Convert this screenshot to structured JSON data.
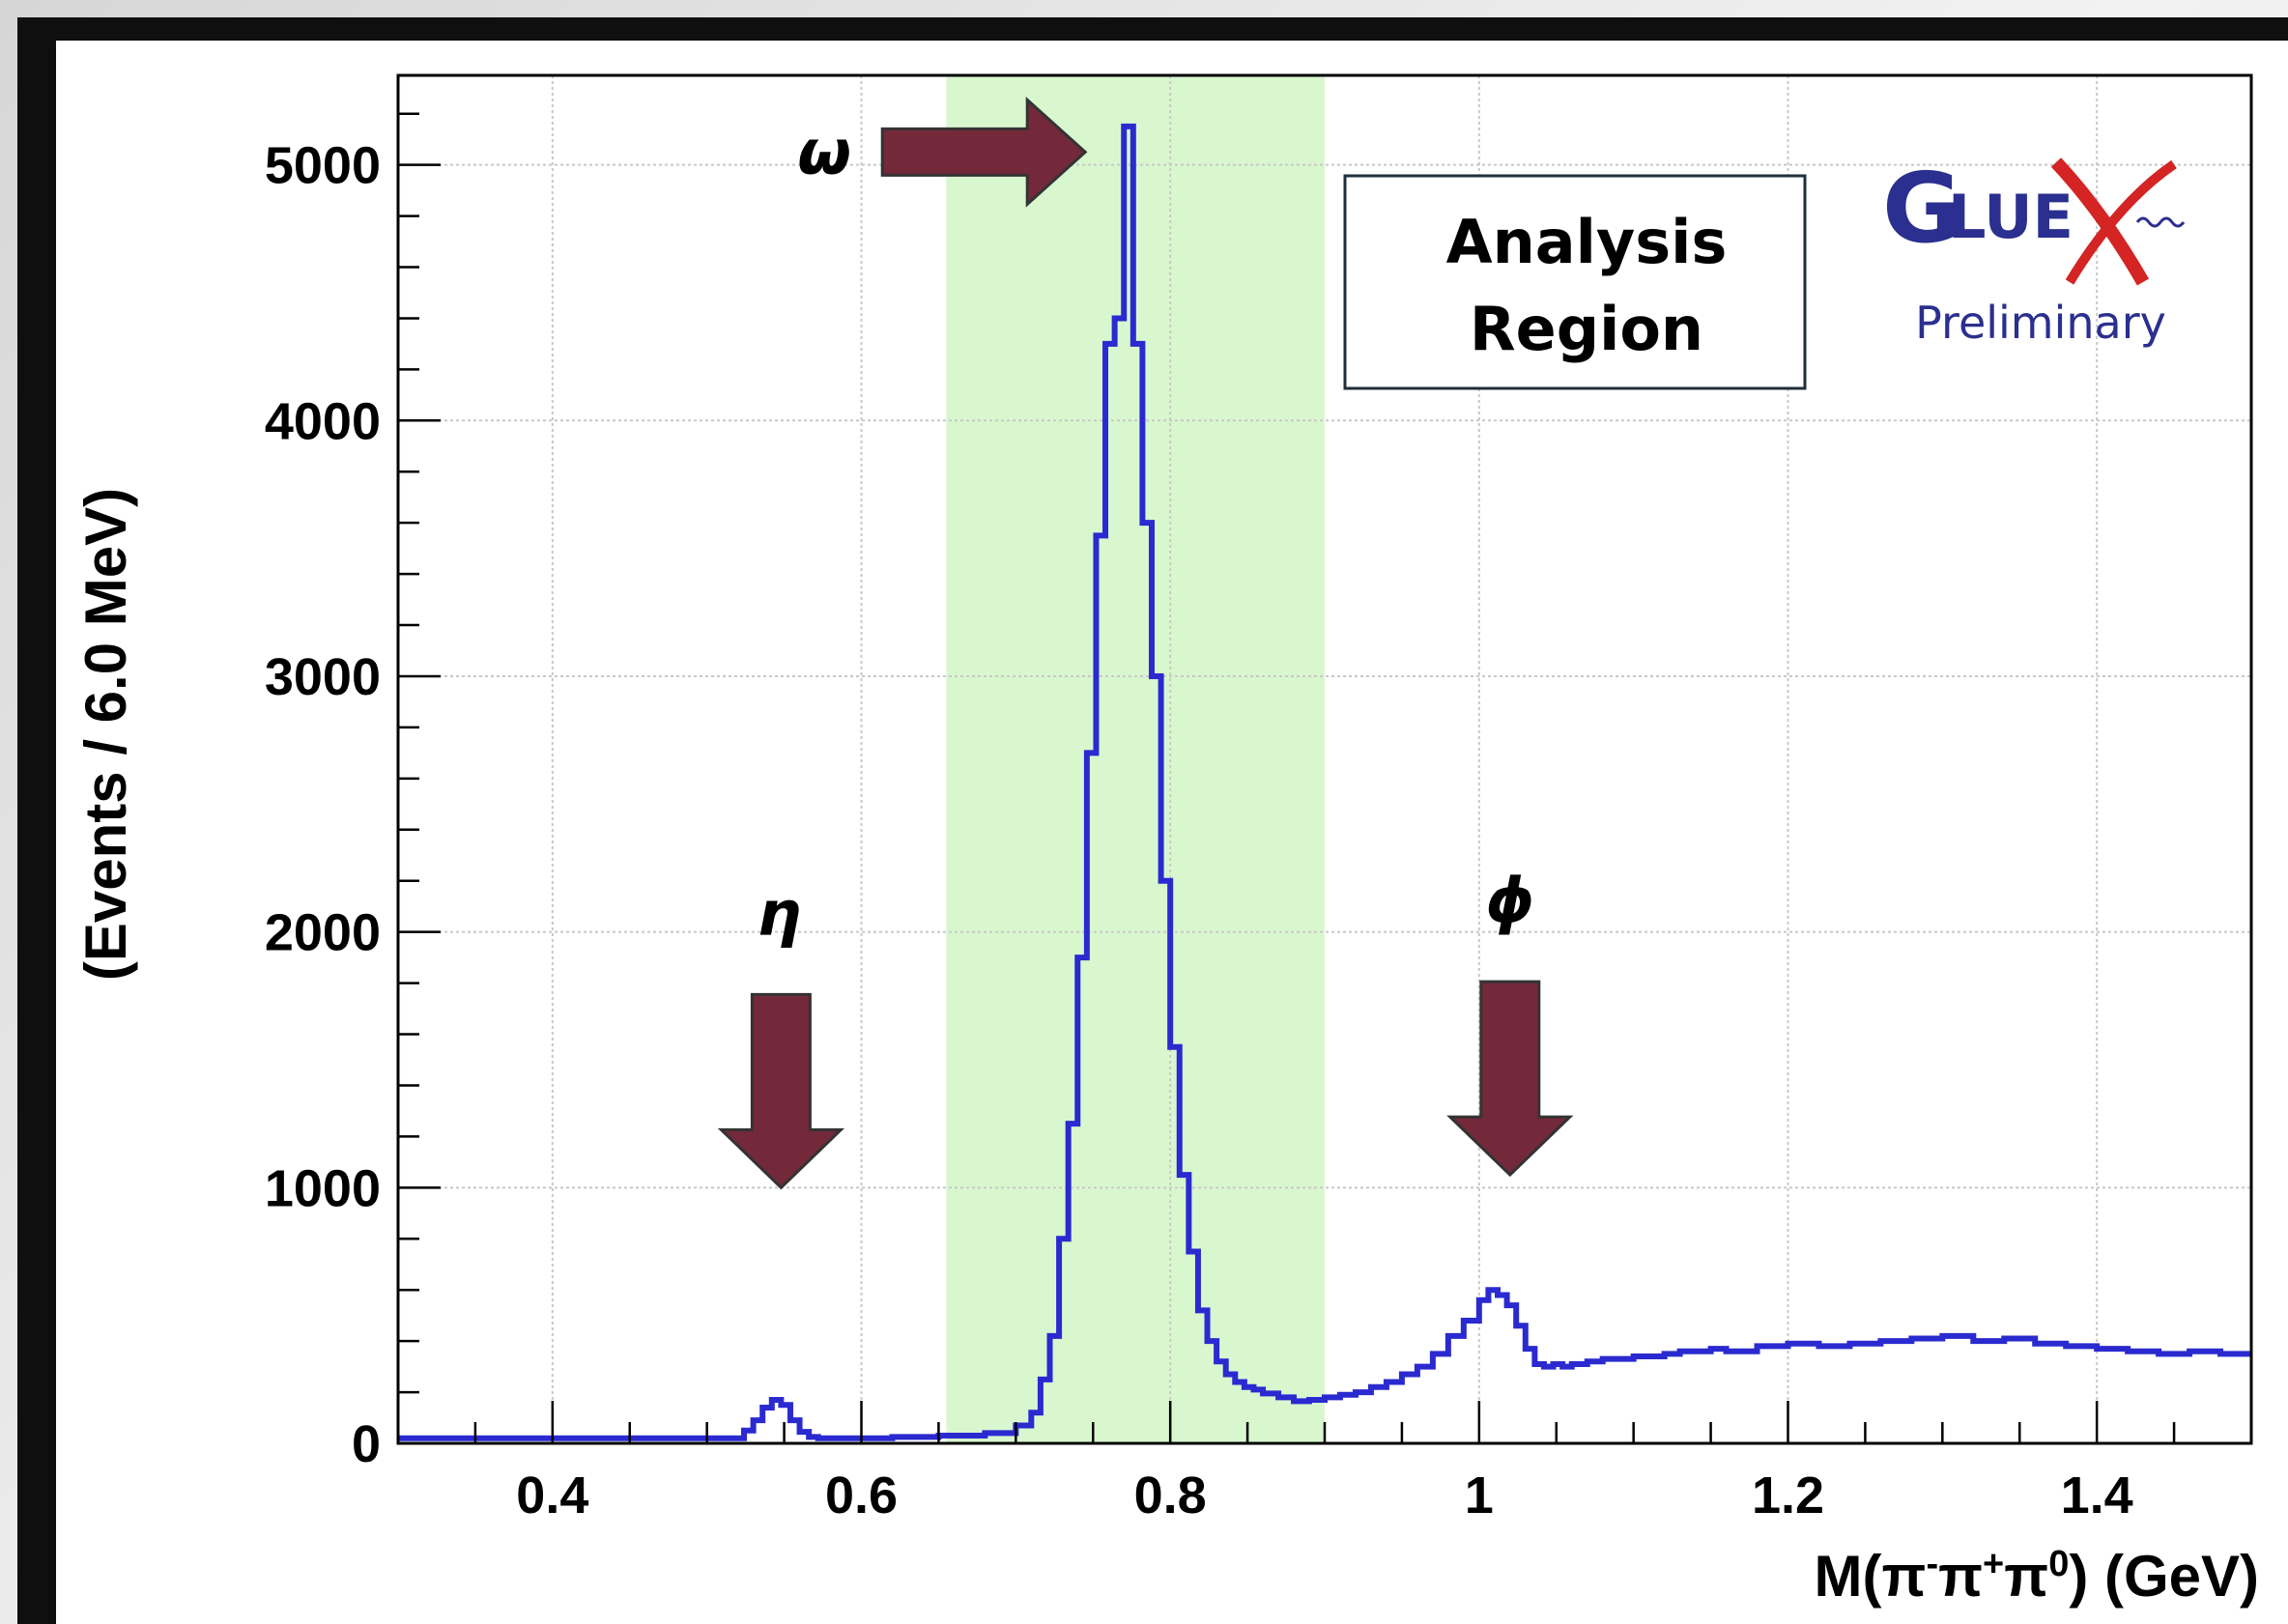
{
  "chart_data": {
    "type": "line",
    "histogram_step": true,
    "xlabel": "M(π⁻π⁺π⁰) (GeV)",
    "xlabel_parts": {
      "prefix": "M(π",
      "s1": "-",
      "mid1": "π",
      "s2": "+",
      "mid2": "π",
      "s3": "0",
      "suffix": ") (GeV)"
    },
    "ylabel": "(Events / 6.0 MeV)",
    "xlim": [
      0.3,
      1.5
    ],
    "ylim": [
      0,
      5350
    ],
    "x_ticks": [
      0.4,
      0.6,
      0.8,
      1.0,
      1.2,
      1.4
    ],
    "x_tick_labels": [
      "0.4",
      "0.6",
      "0.8",
      "1",
      "1.2",
      "1.4"
    ],
    "y_ticks": [
      0,
      1000,
      2000,
      3000,
      4000,
      5000
    ],
    "y_tick_labels": [
      "0",
      "1000",
      "2000",
      "3000",
      "4000",
      "5000"
    ],
    "grid": true,
    "line_color": "#2a2ad0",
    "analysis_region": {
      "x_range": [
        0.655,
        0.9
      ],
      "color": "#d9f7cf"
    },
    "annotations": [
      {
        "name": "omega",
        "text": "ω",
        "x": 0.77,
        "y": 5050,
        "arrow": "right"
      },
      {
        "name": "eta",
        "text": "η",
        "x": 0.548,
        "y": 1000,
        "arrow": "down"
      },
      {
        "name": "phi",
        "text": "ϕ",
        "x": 1.02,
        "y": 1050,
        "arrow": "down"
      }
    ],
    "arrow_color": "#74293a",
    "series": [
      {
        "x": [
          0.3,
          0.5,
          0.524,
          0.53,
          0.536,
          0.542,
          0.548,
          0.554,
          0.56,
          0.566,
          0.572,
          0.58,
          0.62,
          0.65,
          0.68,
          0.7,
          0.71,
          0.716,
          0.722,
          0.728,
          0.734,
          0.74,
          0.746,
          0.752,
          0.758,
          0.764,
          0.77,
          0.776,
          0.782,
          0.788,
          0.794,
          0.8,
          0.806,
          0.812,
          0.818,
          0.824,
          0.83,
          0.836,
          0.842,
          0.848,
          0.854,
          0.86,
          0.87,
          0.88,
          0.89,
          0.9,
          0.91,
          0.92,
          0.93,
          0.94,
          0.95,
          0.96,
          0.97,
          0.98,
          0.99,
          1.0,
          1.006,
          1.012,
          1.018,
          1.024,
          1.03,
          1.036,
          1.042,
          1.048,
          1.054,
          1.06,
          1.07,
          1.08,
          1.09,
          1.1,
          1.11,
          1.12,
          1.13,
          1.14,
          1.15,
          1.16,
          1.18,
          1.2,
          1.22,
          1.24,
          1.26,
          1.28,
          1.3,
          1.32,
          1.34,
          1.36,
          1.38,
          1.4,
          1.42,
          1.44,
          1.46,
          1.48,
          1.5
        ],
        "values": [
          20,
          20,
          50,
          90,
          140,
          170,
          150,
          90,
          45,
          25,
          20,
          20,
          25,
          30,
          40,
          70,
          120,
          250,
          420,
          800,
          1250,
          1900,
          2700,
          3550,
          4300,
          4400,
          5150,
          4300,
          3600,
          3000,
          2200,
          1550,
          1050,
          750,
          520,
          400,
          320,
          270,
          240,
          220,
          210,
          195,
          180,
          165,
          170,
          180,
          190,
          200,
          220,
          240,
          270,
          300,
          350,
          420,
          480,
          560,
          600,
          580,
          540,
          460,
          370,
          310,
          300,
          310,
          300,
          310,
          320,
          330,
          330,
          340,
          340,
          350,
          360,
          360,
          370,
          360,
          380,
          390,
          380,
          390,
          400,
          410,
          420,
          400,
          410,
          390,
          380,
          370,
          360,
          350,
          360,
          350,
          350
        ]
      }
    ]
  },
  "analysis_region_label": [
    "Analysis",
    "Region"
  ],
  "logo": {
    "brand": "GLUEX",
    "g_letter": "G",
    "middle_letters": "LUE",
    "x_letter": "X",
    "subtitle": "Preliminary"
  }
}
